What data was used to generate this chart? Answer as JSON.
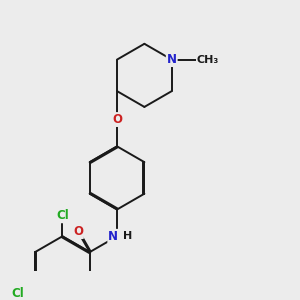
{
  "bg_color": "#ececec",
  "bond_color": "#1a1a1a",
  "bond_width": 1.4,
  "dbo": 0.035,
  "atom_colors": {
    "N": "#2222cc",
    "O": "#cc2222",
    "Cl": "#22aa22",
    "C": "#1a1a1a"
  },
  "fs": 8.5
}
